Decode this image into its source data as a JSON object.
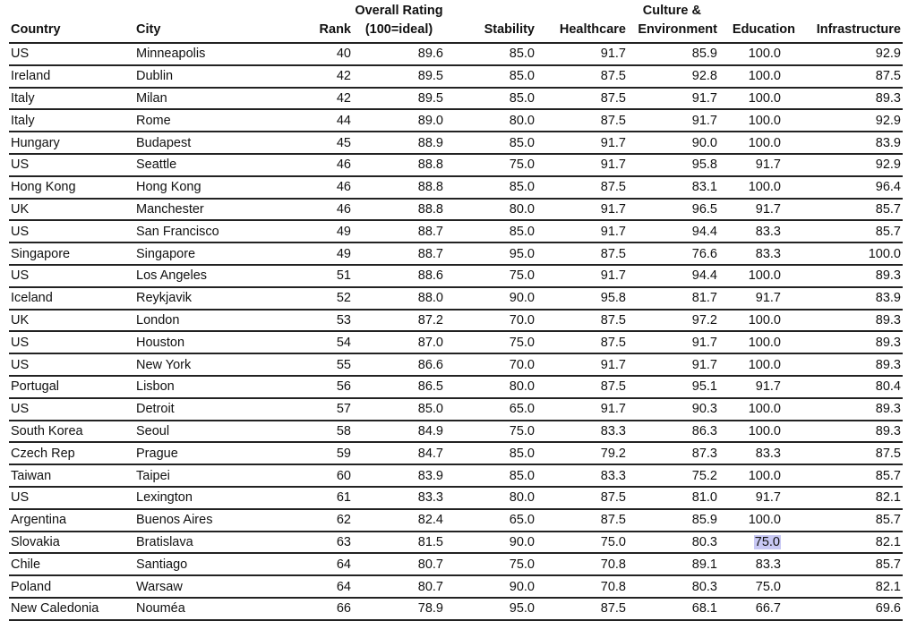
{
  "headers": {
    "country": "Country",
    "city": "City",
    "rank": "Rank",
    "overall_line1": "Overall Rating",
    "overall_line2": "(100=ideal)",
    "stability": "Stability",
    "healthcare": "Healthcare",
    "culture_line1": "Culture &",
    "culture_line2": "Environment",
    "education": "Education",
    "infrastructure": "Infrastructure"
  },
  "highlight_color": "#c8c8f4",
  "highlighted_cell": {
    "row": 22,
    "column": "education"
  },
  "rows": [
    [
      "US",
      "Minneapolis",
      "40",
      "89.6",
      "85.0",
      "91.7",
      "85.9",
      "100.0",
      "92.9"
    ],
    [
      "Ireland",
      "Dublin",
      "42",
      "89.5",
      "85.0",
      "87.5",
      "92.8",
      "100.0",
      "87.5"
    ],
    [
      "Italy",
      "Milan",
      "42",
      "89.5",
      "85.0",
      "87.5",
      "91.7",
      "100.0",
      "89.3"
    ],
    [
      "Italy",
      "Rome",
      "44",
      "89.0",
      "80.0",
      "87.5",
      "91.7",
      "100.0",
      "92.9"
    ],
    [
      "Hungary",
      "Budapest",
      "45",
      "88.9",
      "85.0",
      "91.7",
      "90.0",
      "100.0",
      "83.9"
    ],
    [
      "US",
      "Seattle",
      "46",
      "88.8",
      "75.0",
      "91.7",
      "95.8",
      "91.7",
      "92.9"
    ],
    [
      "Hong Kong",
      "Hong Kong",
      "46",
      "88.8",
      "85.0",
      "87.5",
      "83.1",
      "100.0",
      "96.4"
    ],
    [
      "UK",
      "Manchester",
      "46",
      "88.8",
      "80.0",
      "91.7",
      "96.5",
      "91.7",
      "85.7"
    ],
    [
      "US",
      "San Francisco",
      "49",
      "88.7",
      "85.0",
      "91.7",
      "94.4",
      "83.3",
      "85.7"
    ],
    [
      "Singapore",
      "Singapore",
      "49",
      "88.7",
      "95.0",
      "87.5",
      "76.6",
      "83.3",
      "100.0"
    ],
    [
      "US",
      "Los Angeles",
      "51",
      "88.6",
      "75.0",
      "91.7",
      "94.4",
      "100.0",
      "89.3"
    ],
    [
      "Iceland",
      "Reykjavik",
      "52",
      "88.0",
      "90.0",
      "95.8",
      "81.7",
      "91.7",
      "83.9"
    ],
    [
      "UK",
      "London",
      "53",
      "87.2",
      "70.0",
      "87.5",
      "97.2",
      "100.0",
      "89.3"
    ],
    [
      "US",
      "Houston",
      "54",
      "87.0",
      "75.0",
      "87.5",
      "91.7",
      "100.0",
      "89.3"
    ],
    [
      "US",
      "New York",
      "55",
      "86.6",
      "70.0",
      "91.7",
      "91.7",
      "100.0",
      "89.3"
    ],
    [
      "Portugal",
      "Lisbon",
      "56",
      "86.5",
      "80.0",
      "87.5",
      "95.1",
      "91.7",
      "80.4"
    ],
    [
      "US",
      "Detroit",
      "57",
      "85.0",
      "65.0",
      "91.7",
      "90.3",
      "100.0",
      "89.3"
    ],
    [
      "South Korea",
      "Seoul",
      "58",
      "84.9",
      "75.0",
      "83.3",
      "86.3",
      "100.0",
      "89.3"
    ],
    [
      "Czech Rep",
      "Prague",
      "59",
      "84.7",
      "85.0",
      "79.2",
      "87.3",
      "83.3",
      "87.5"
    ],
    [
      "Taiwan",
      "Taipei",
      "60",
      "83.9",
      "85.0",
      "83.3",
      "75.2",
      "100.0",
      "85.7"
    ],
    [
      "US",
      "Lexington",
      "61",
      "83.3",
      "80.0",
      "87.5",
      "81.0",
      "91.7",
      "82.1"
    ],
    [
      "Argentina",
      "Buenos Aires",
      "62",
      "82.4",
      "65.0",
      "87.5",
      "85.9",
      "100.0",
      "85.7"
    ],
    [
      "Slovakia",
      "Bratislava",
      "63",
      "81.5",
      "90.0",
      "75.0",
      "80.3",
      "75.0",
      "82.1"
    ],
    [
      "Chile",
      "Santiago",
      "64",
      "80.7",
      "75.0",
      "70.8",
      "89.1",
      "83.3",
      "85.7"
    ],
    [
      "Poland",
      "Warsaw",
      "64",
      "80.7",
      "90.0",
      "70.8",
      "80.3",
      "75.0",
      "82.1"
    ],
    [
      "New Caledonia",
      "Nouméa",
      "66",
      "78.9",
      "95.0",
      "87.5",
      "68.1",
      "66.7",
      "69.6"
    ]
  ]
}
